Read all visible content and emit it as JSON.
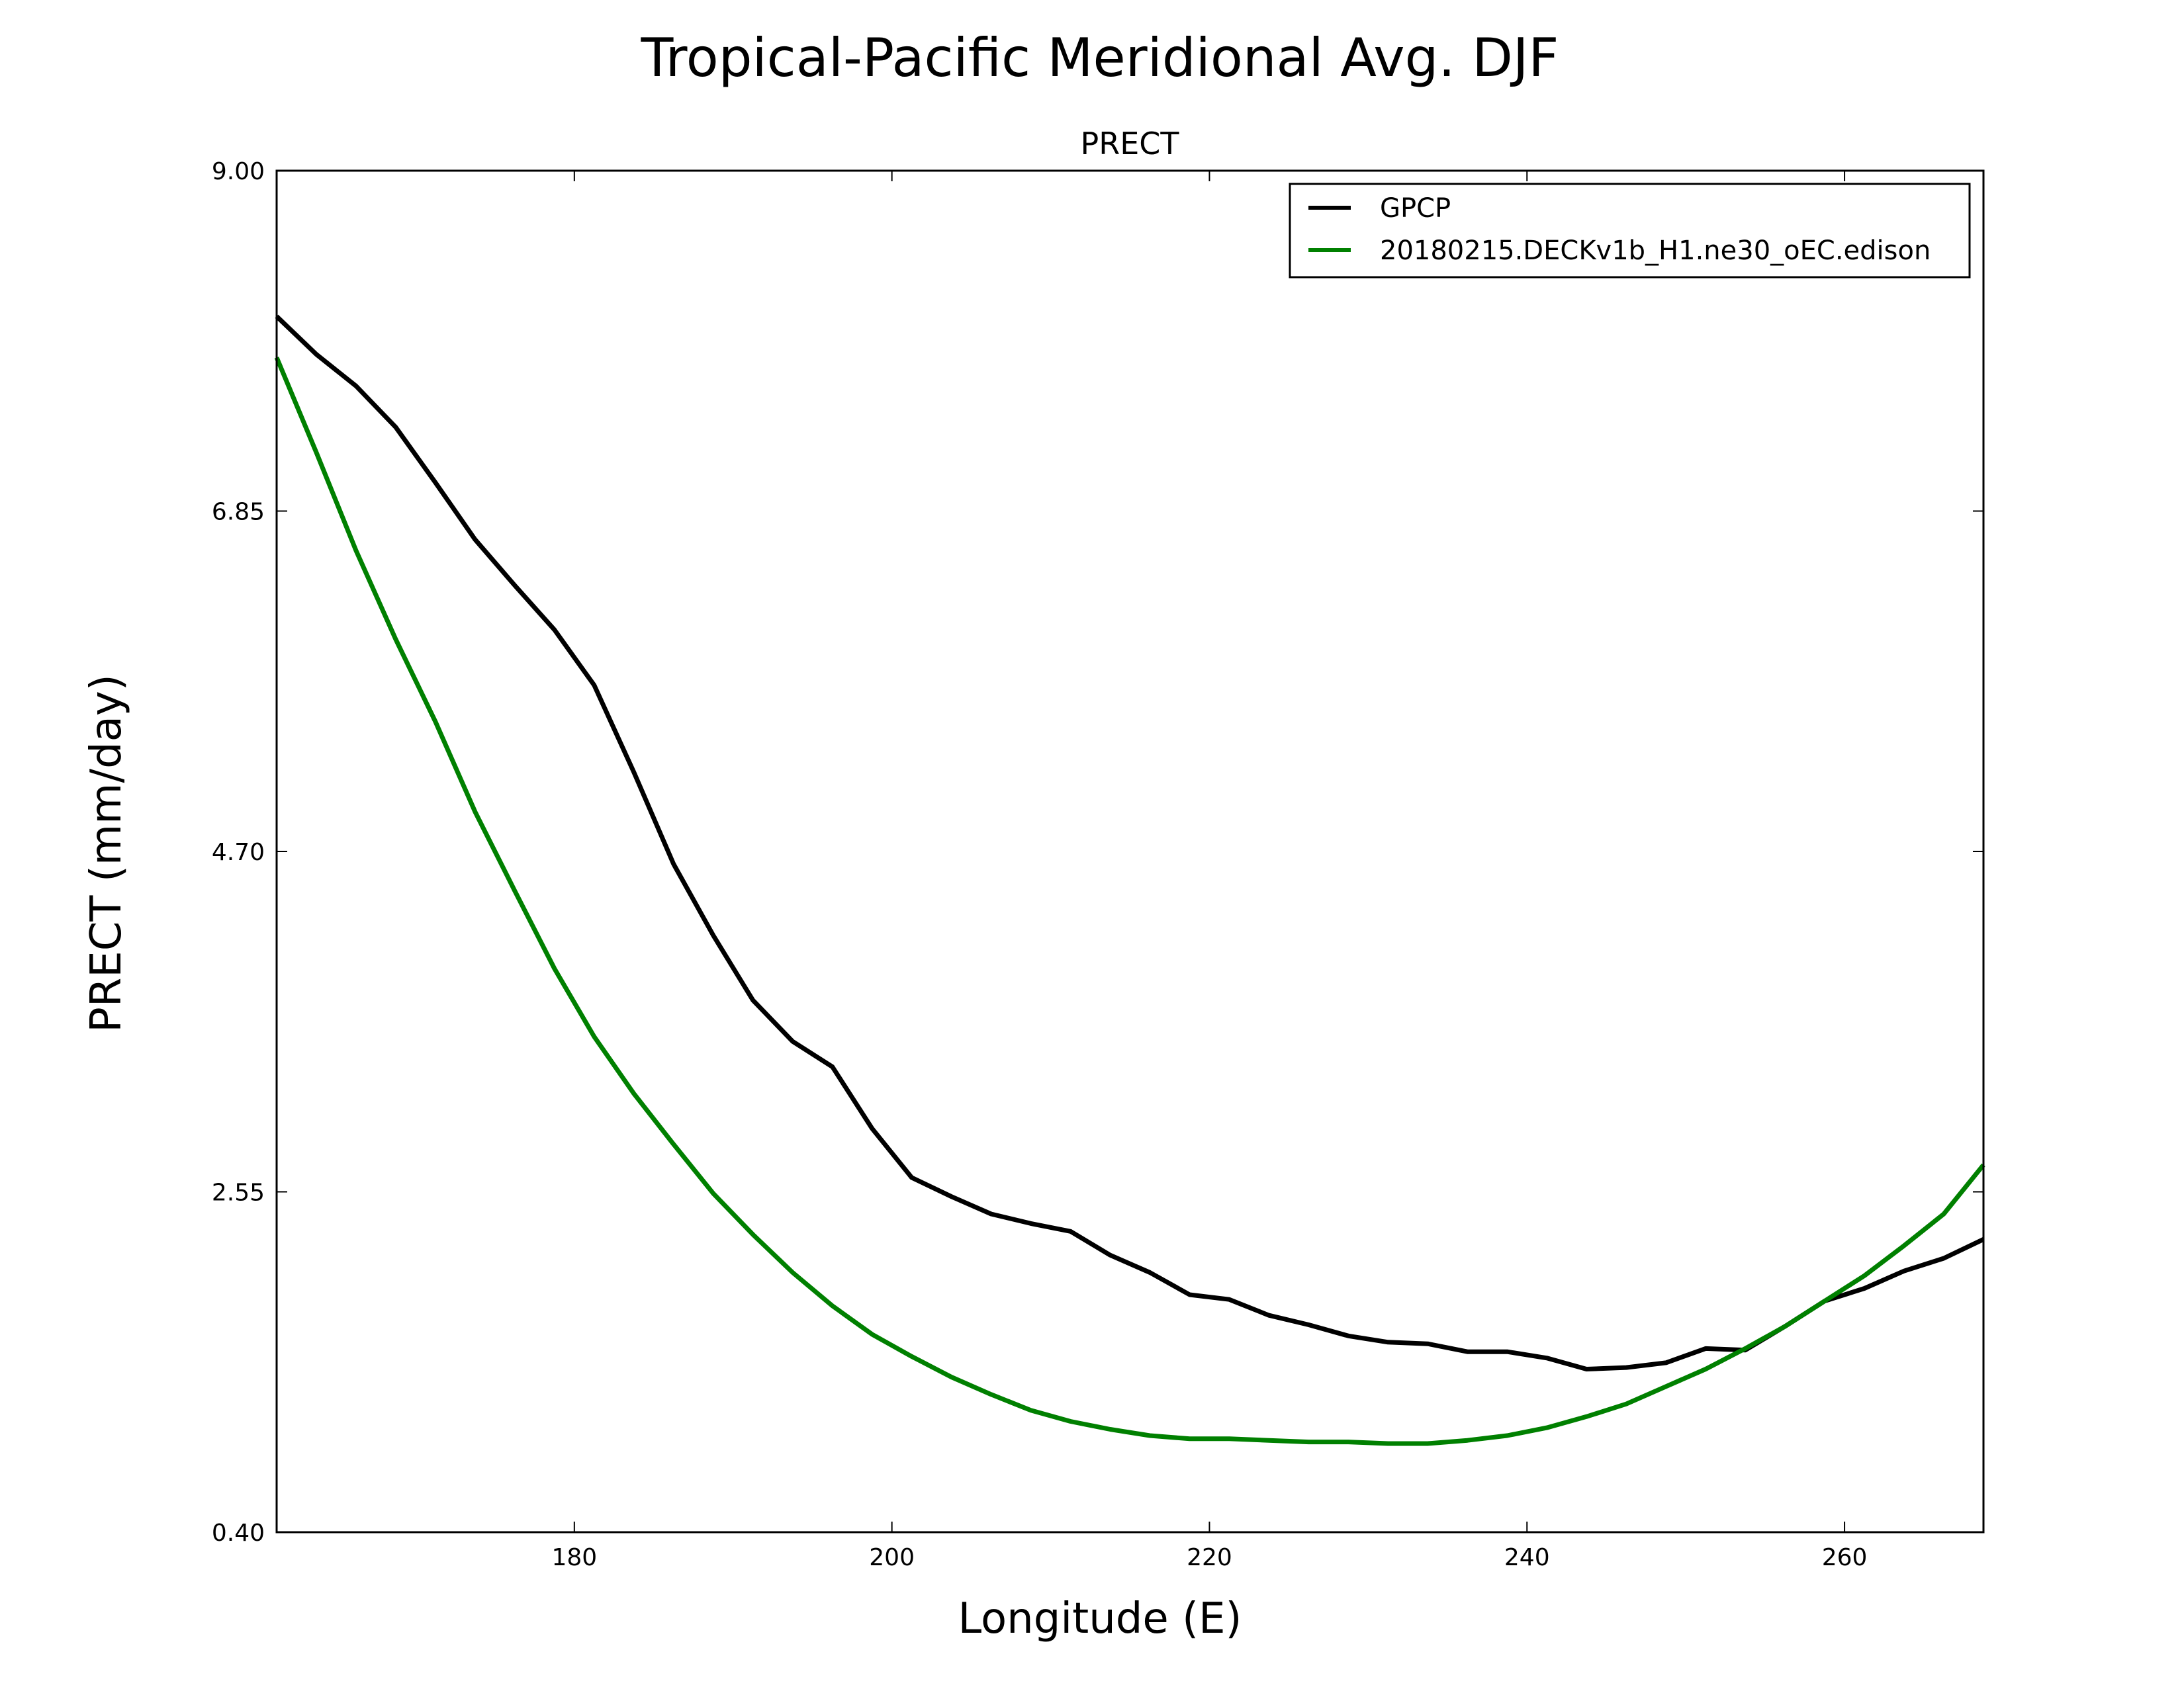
{
  "figure": {
    "title": "Tropical-Pacific Meridional Avg. DJF"
  },
  "chart_data": {
    "type": "line",
    "title": "PRECT",
    "xlabel": "Longitude (E)",
    "ylabel": "PRECT (mm/day)",
    "xlim": [
      161.25,
      268.75
    ],
    "ylim": [
      0.4,
      9.0
    ],
    "xticks": [
      "180",
      "200",
      "220",
      "240",
      "260"
    ],
    "xtick_values": [
      180,
      200,
      220,
      240,
      260
    ],
    "yticks": [
      "0.40",
      "2.55",
      "4.70",
      "6.85",
      "9.00"
    ],
    "ytick_values": [
      0.4,
      2.55,
      4.7,
      6.85,
      9.0
    ],
    "grid": false,
    "legend_position": "top-right",
    "series": [
      {
        "name": "GPCP",
        "color": "#000000",
        "x": [
          161.25,
          163.75,
          166.25,
          168.75,
          171.25,
          173.75,
          176.25,
          178.75,
          181.25,
          183.75,
          186.25,
          188.75,
          191.25,
          193.75,
          196.25,
          198.75,
          201.25,
          203.75,
          206.25,
          208.75,
          211.25,
          213.75,
          216.25,
          218.75,
          221.25,
          223.75,
          226.25,
          228.75,
          231.25,
          233.75,
          236.25,
          238.75,
          241.25,
          243.75,
          246.25,
          248.75,
          251.25,
          253.75,
          256.25,
          258.75,
          261.25,
          263.75,
          266.25,
          268.75
        ],
        "y": [
          8.08,
          7.84,
          7.64,
          7.38,
          7.03,
          6.67,
          6.38,
          6.1,
          5.75,
          5.2,
          4.62,
          4.17,
          3.76,
          3.5,
          3.34,
          2.95,
          2.64,
          2.52,
          2.41,
          2.35,
          2.3,
          2.15,
          2.04,
          1.9,
          1.87,
          1.77,
          1.71,
          1.64,
          1.6,
          1.59,
          1.54,
          1.54,
          1.5,
          1.43,
          1.44,
          1.47,
          1.56,
          1.55,
          1.7,
          1.86,
          1.94,
          2.05,
          2.13,
          2.25
        ]
      },
      {
        "name": "20180215.DECKv1b_H1.ne30_oEC.edison",
        "color": "#008000",
        "x": [
          161.25,
          163.75,
          166.25,
          168.75,
          171.25,
          173.75,
          176.25,
          178.75,
          181.25,
          183.75,
          186.25,
          188.75,
          191.25,
          193.75,
          196.25,
          198.75,
          201.25,
          203.75,
          206.25,
          208.75,
          211.25,
          213.75,
          216.25,
          218.75,
          221.25,
          223.75,
          226.25,
          228.75,
          231.25,
          233.75,
          236.25,
          238.75,
          241.25,
          243.75,
          246.25,
          248.75,
          251.25,
          253.75,
          256.25,
          258.75,
          261.25,
          263.75,
          266.25,
          268.75
        ],
        "y": [
          7.82,
          7.22,
          6.6,
          6.04,
          5.52,
          4.95,
          4.45,
          3.96,
          3.53,
          3.17,
          2.85,
          2.54,
          2.28,
          2.04,
          1.83,
          1.65,
          1.51,
          1.38,
          1.27,
          1.17,
          1.1,
          1.05,
          1.01,
          0.99,
          0.99,
          0.98,
          0.97,
          0.97,
          0.96,
          0.96,
          0.98,
          1.01,
          1.06,
          1.13,
          1.21,
          1.32,
          1.43,
          1.56,
          1.7,
          1.86,
          2.02,
          2.21,
          2.41,
          2.72
        ]
      }
    ]
  }
}
